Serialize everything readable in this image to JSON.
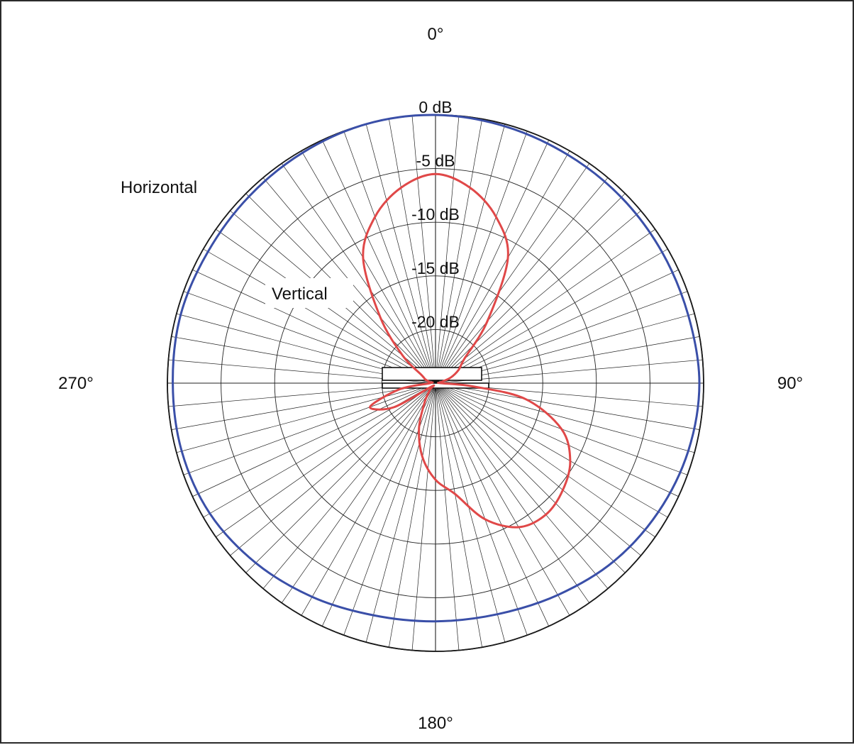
{
  "chart_data": {
    "type": "polar",
    "title": "",
    "angle_unit": "degrees",
    "angle_direction": "clockwise",
    "zero_at": "top",
    "radial_unit": "dB",
    "radial_range": [
      -25,
      0
    ],
    "grid": true,
    "angle_labels": [
      {
        "angle": 0,
        "text": "0°"
      },
      {
        "angle": 90,
        "text": "90°"
      },
      {
        "angle": 180,
        "text": "180°"
      },
      {
        "angle": 270,
        "text": "270°"
      }
    ],
    "ring_labels": [
      {
        "value": 0,
        "text": "0 dB"
      },
      {
        "value": -5,
        "text": "-5 dB"
      },
      {
        "value": -10,
        "text": "-10 dB"
      },
      {
        "value": -15,
        "text": "-15 dB"
      },
      {
        "value": -20,
        "text": "-20 dB"
      }
    ],
    "series": [
      {
        "name": "Horizontal",
        "color": "#3a4fa8",
        "angles": [
          0,
          15,
          30,
          45,
          60,
          75,
          90,
          105,
          120,
          135,
          150,
          165,
          180,
          195,
          210,
          225,
          240,
          255,
          270,
          285,
          300,
          315,
          330,
          345
        ],
        "values": [
          0,
          -0.2,
          -0.4,
          -0.5,
          -0.6,
          -0.6,
          -0.4,
          -0.6,
          -1.0,
          -1.5,
          -2.2,
          -2.7,
          -2.8,
          -2.6,
          -2.0,
          -1.3,
          -0.7,
          -0.5,
          -0.5,
          -0.4,
          -0.5,
          -0.4,
          -0.2,
          0
        ]
      },
      {
        "name": "Vertical",
        "color": "#e04848",
        "angles": [
          0,
          10,
          20,
          30,
          40,
          50,
          60,
          70,
          80,
          90,
          95,
          100,
          110,
          120,
          130,
          140,
          150,
          160,
          170,
          180,
          190,
          200,
          210,
          220,
          230,
          240,
          250,
          260,
          270,
          280,
          290,
          300,
          310,
          320,
          330,
          340,
          350
        ],
        "values": [
          -5.5,
          -6.5,
          -8.5,
          -11.5,
          -17.5,
          -21.5,
          -22.5,
          -23.5,
          -24.5,
          -24.5,
          -21.5,
          -16.5,
          -12.5,
          -10.5,
          -9.5,
          -9.0,
          -9.5,
          -11.5,
          -14.5,
          -16.0,
          -18.0,
          -20.5,
          -23.0,
          -24.2,
          -24.5,
          -20.5,
          -18.5,
          -21.5,
          -24.5,
          -24.5,
          -24.0,
          -23.5,
          -21.0,
          -17.0,
          -11.5,
          -8.5,
          -6.5
        ]
      }
    ]
  }
}
